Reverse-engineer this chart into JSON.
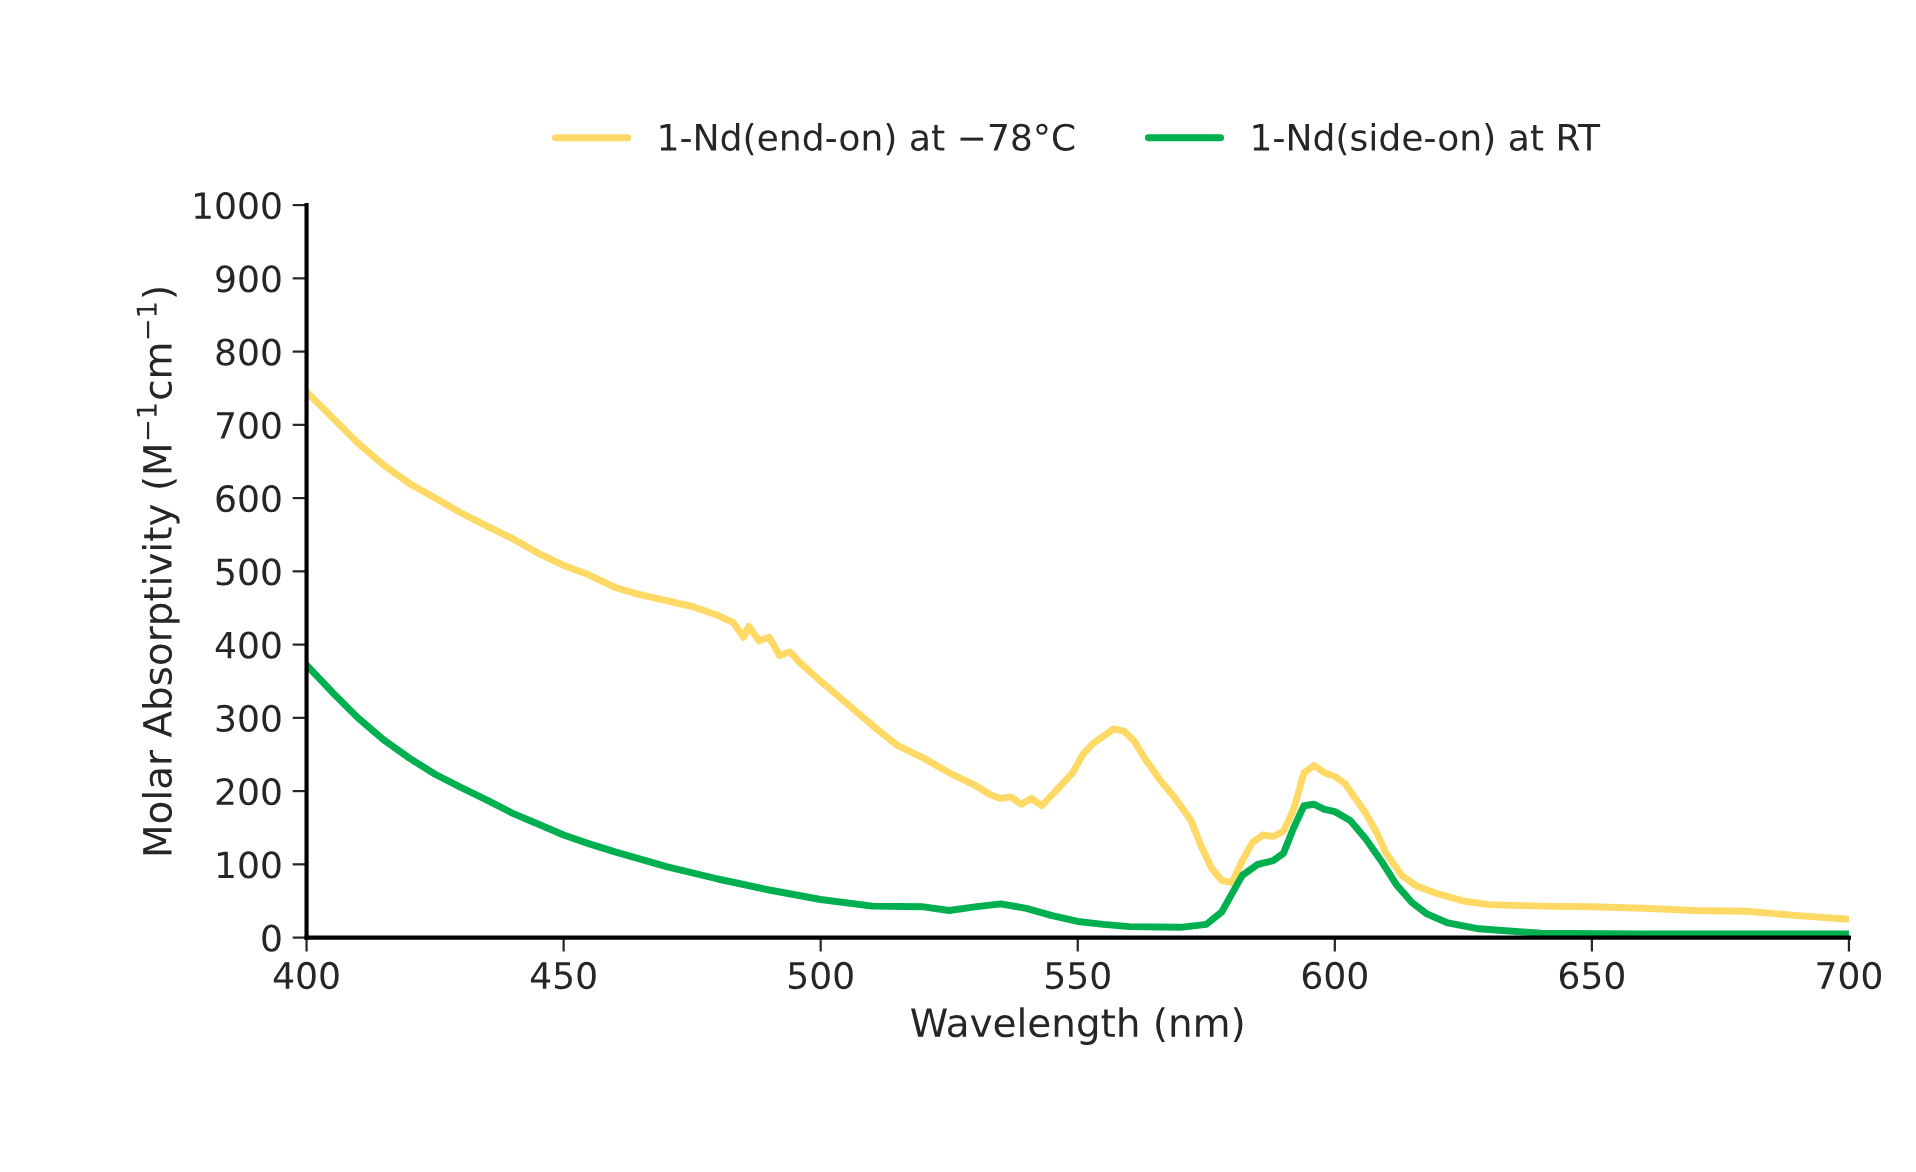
{
  "chart_data": {
    "type": "line",
    "xlabel": "Wavelength (nm)",
    "ylabel": "Molar Absorptivity (M$^{−1}$cm$^{−1}$)",
    "xlim": [
      400,
      700
    ],
    "xticks": [
      400,
      450,
      500,
      550,
      600,
      650,
      700
    ],
    "ylim": [
      0,
      1000
    ],
    "yticks": [
      0,
      100,
      200,
      300,
      400,
      500,
      600,
      700,
      800,
      900,
      1000
    ],
    "grid": false,
    "legend": "top",
    "marker": "none",
    "line_style": "solid",
    "series": [
      {
        "name": "1-Nd(end-on) at −78°C",
        "color": "#ffd966",
        "x": [
          400,
          405,
          410,
          415,
          420,
          425,
          430,
          435,
          440,
          445,
          450,
          455,
          460,
          465,
          470,
          475,
          480,
          483,
          485,
          486,
          488,
          490,
          492,
          494,
          496,
          500,
          505,
          510,
          515,
          520,
          525,
          530,
          533,
          535,
          537,
          539,
          541,
          543,
          545,
          547,
          549,
          551,
          553,
          555,
          557,
          559,
          561,
          563,
          566,
          569,
          572,
          574,
          576,
          578,
          580,
          582,
          584,
          586,
          588,
          590,
          592,
          594,
          596,
          598,
          600,
          602,
          604,
          606,
          608,
          610,
          613,
          616,
          620,
          625,
          630,
          640,
          650,
          660,
          670,
          680,
          690,
          700
        ],
        "values": [
          745,
          710,
          675,
          645,
          620,
          600,
          580,
          562,
          545,
          525,
          508,
          495,
          478,
          468,
          460,
          452,
          440,
          430,
          410,
          425,
          405,
          410,
          385,
          390,
          375,
          350,
          320,
          290,
          262,
          245,
          225,
          208,
          195,
          190,
          192,
          182,
          190,
          180,
          195,
          210,
          225,
          250,
          265,
          275,
          285,
          282,
          268,
          245,
          215,
          190,
          160,
          125,
          95,
          78,
          75,
          105,
          130,
          140,
          138,
          145,
          175,
          225,
          235,
          225,
          220,
          210,
          190,
          170,
          145,
          115,
          85,
          70,
          60,
          50,
          45,
          43,
          42,
          40,
          37,
          36,
          30,
          25
        ]
      },
      {
        "name": "1-Nd(side-on) at RT",
        "color": "#00b050",
        "x": [
          400,
          405,
          410,
          415,
          420,
          425,
          430,
          435,
          440,
          445,
          450,
          455,
          460,
          470,
          480,
          490,
          500,
          510,
          520,
          525,
          530,
          535,
          540,
          545,
          550,
          555,
          560,
          570,
          575,
          578,
          580,
          582,
          585,
          588,
          590,
          592,
          594,
          596,
          598,
          600,
          603,
          606,
          609,
          612,
          615,
          618,
          622,
          628,
          640,
          660,
          700
        ],
        "values": [
          372,
          335,
          300,
          270,
          245,
          223,
          205,
          188,
          170,
          155,
          140,
          128,
          117,
          97,
          80,
          65,
          52,
          43,
          42,
          37,
          42,
          46,
          40,
          30,
          22,
          18,
          15,
          14,
          18,
          35,
          60,
          85,
          100,
          105,
          115,
          150,
          180,
          182,
          175,
          172,
          160,
          135,
          105,
          72,
          48,
          32,
          20,
          12,
          6,
          5,
          5
        ]
      }
    ]
  }
}
